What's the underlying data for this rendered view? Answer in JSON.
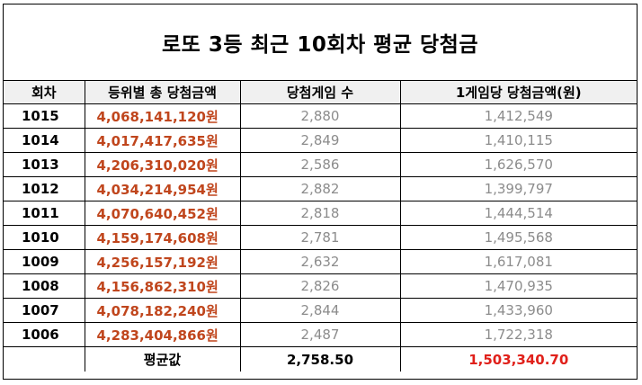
{
  "title": "로또 3등 최근 10회차 평균 당첨금",
  "headers": [
    "회차",
    "등위별 총 당첨금액",
    "당첨게임 수",
    "1게임당 당첨금액(원)"
  ],
  "rows": [
    {
      "round": "1015",
      "total": "4,068,141,120원",
      "games": "2,880",
      "per_game": "1,412,549"
    },
    {
      "round": "1014",
      "total": "4,017,417,635원",
      "games": "2,849",
      "per_game": "1,410,115"
    },
    {
      "round": "1013",
      "total": "4,206,310,020원",
      "games": "2,586",
      "per_game": "1,626,570"
    },
    {
      "round": "1012",
      "total": "4,034,214,954원",
      "games": "2,882",
      "per_game": "1,399,797"
    },
    {
      "round": "1011",
      "total": "4,070,640,452원",
      "games": "2,818",
      "per_game": "1,444,514"
    },
    {
      "round": "1010",
      "total": "4,159,174,608원",
      "games": "2,781",
      "per_game": "1,495,568"
    },
    {
      "round": "1009",
      "total": "4,256,157,192원",
      "games": "2,632",
      "per_game": "1,617,081"
    },
    {
      "round": "1008",
      "total": "4,156,862,310원",
      "games": "2,826",
      "per_game": "1,470,935"
    },
    {
      "round": "1007",
      "total": "4,078,182,240원",
      "games": "2,844",
      "per_game": "1,433,960"
    },
    {
      "round": "1006",
      "total": "4,283,404,866원",
      "games": "2,487",
      "per_game": "1,722,318"
    }
  ],
  "average": {
    "label": "평균값",
    "games": "2,758.50",
    "per_game": "1,503,340.70"
  },
  "colors": {
    "total_amount": "#c0461d",
    "games": "#8c8c8c",
    "average_prize": "#e0201a",
    "header_bg": "#f0f0f0"
  }
}
